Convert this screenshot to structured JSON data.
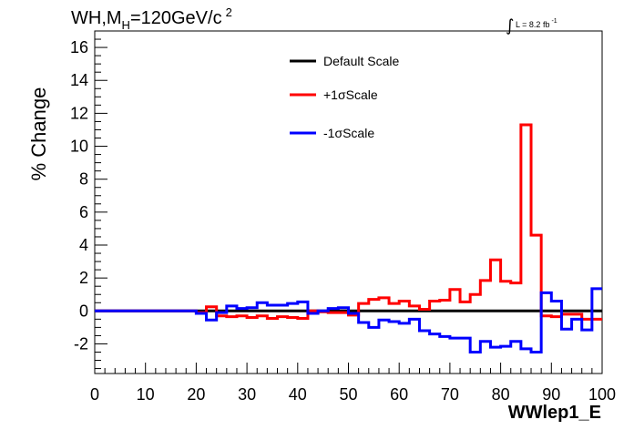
{
  "title": {
    "main": "WH,M",
    "sub": "H",
    "rest": "=120GeV/c",
    "sup": "2"
  },
  "lumi": {
    "integral": "∫",
    "text": "L = 8.2 fb",
    "sup": "-1"
  },
  "chart_data": {
    "type": "line",
    "title": "WH,MH=120GeV/c2",
    "xlabel": "WWlep1_E",
    "ylabel": "% Change",
    "xlim": [
      0,
      100
    ],
    "ylim": [
      -3.8,
      17
    ],
    "xticks": [
      0,
      10,
      20,
      30,
      40,
      50,
      60,
      70,
      80,
      90,
      100
    ],
    "yticks": [
      -2,
      0,
      2,
      4,
      6,
      8,
      10,
      12,
      14,
      16
    ],
    "grid": false,
    "legend_position": "top-center",
    "bin_edges": [
      0,
      2,
      4,
      6,
      8,
      10,
      12,
      14,
      16,
      18,
      20,
      22,
      24,
      26,
      28,
      30,
      32,
      34,
      36,
      38,
      40,
      42,
      44,
      46,
      48,
      50,
      52,
      54,
      56,
      58,
      60,
      62,
      64,
      66,
      68,
      70,
      72,
      74,
      76,
      78,
      80,
      82,
      84,
      86,
      88,
      90,
      92,
      94,
      96,
      98,
      100
    ],
    "series": [
      {
        "name": "Default Scale",
        "color": "#000000",
        "values": [
          0,
          0,
          0,
          0,
          0,
          0,
          0,
          0,
          0,
          0,
          0,
          0,
          0,
          0,
          0,
          0,
          0,
          0,
          0,
          0,
          0,
          0,
          0,
          0,
          0,
          0,
          0,
          0,
          0,
          0,
          0,
          0,
          0,
          0,
          0,
          0,
          0,
          0,
          0,
          0,
          0,
          0,
          0,
          0,
          0,
          0,
          0,
          0,
          0,
          0
        ]
      },
      {
        "name": "+1σScale",
        "color": "#ff0000",
        "values": [
          0,
          0,
          0,
          0,
          0,
          0,
          0,
          0,
          0,
          0,
          -0.1,
          0.25,
          -0.3,
          -0.35,
          -0.3,
          -0.4,
          -0.3,
          -0.45,
          -0.35,
          -0.4,
          -0.45,
          0.0,
          -0.05,
          -0.1,
          -0.1,
          -0.25,
          0.45,
          0.7,
          0.8,
          0.45,
          0.6,
          0.3,
          0.1,
          0.6,
          0.65,
          1.3,
          0.55,
          1.0,
          1.85,
          3.1,
          1.8,
          1.7,
          11.3,
          4.6,
          -0.3,
          -0.35,
          -0.2,
          -0.2,
          -0.5,
          -0.5
        ]
      },
      {
        "name": "-1σScale",
        "color": "#0000ff",
        "values": [
          0,
          0,
          0,
          0,
          0,
          0,
          0,
          0,
          0,
          0,
          -0.15,
          -0.55,
          -0.1,
          0.3,
          0.15,
          0.2,
          0.5,
          0.35,
          0.35,
          0.45,
          0.55,
          -0.15,
          0.0,
          0.15,
          0.2,
          -0.15,
          -0.7,
          -1.0,
          -0.55,
          -0.65,
          -0.75,
          -0.5,
          -1.2,
          -1.4,
          -1.55,
          -1.65,
          -1.65,
          -2.5,
          -1.85,
          -2.2,
          -2.15,
          -1.85,
          -2.3,
          -2.5,
          1.1,
          0.6,
          -1.1,
          -0.5,
          -1.15,
          1.35
        ]
      }
    ]
  }
}
